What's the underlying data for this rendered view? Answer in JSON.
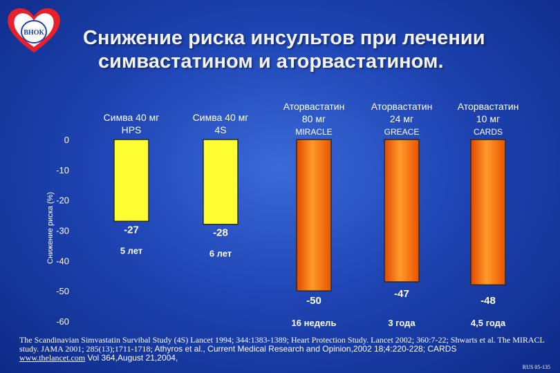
{
  "logo": {
    "text": "ВНОК",
    "name": "vnok-heart-logo"
  },
  "title": {
    "line1": "Снижение риска инсультов при лечении",
    "line2": "симвастатином и аторвастатином."
  },
  "chart_data": {
    "type": "bar",
    "ylabel": "Снижение риска (%)",
    "ylim": [
      -60,
      0
    ],
    "yticks": [
      0,
      -10,
      -20,
      -30,
      -40,
      -50,
      -60
    ],
    "grid": false,
    "categories": [
      {
        "line1": "Симва 40 мг",
        "line2": "HPS",
        "study": ""
      },
      {
        "line1": "Симва 40 мг",
        "line2": "4S",
        "study": ""
      },
      {
        "line1": "Аторвастатин",
        "line2": "80 мг",
        "study": "MIRACLE"
      },
      {
        "line1": "Аторвастатин",
        "line2": "24 мг",
        "study": "GREACE"
      },
      {
        "line1": "Аторвастатин",
        "line2": "10 мг",
        "study": "CARDS"
      }
    ],
    "values": [
      -27,
      -28,
      -50,
      -47,
      -48
    ],
    "value_labels": [
      "-27",
      "-28",
      "-50",
      "-47",
      "-48"
    ],
    "durations": [
      "5 лет",
      "6 лет",
      "16 недель",
      "3 года",
      "4,5 года"
    ],
    "bar_colors": [
      "#ffff33",
      "#ffff33",
      "orange-gradient",
      "orange-gradient",
      "orange-gradient"
    ]
  },
  "references": {
    "part1": "The Scandinavian Simvastatin Survibal Study (4S) Lancet 1994; 344:1383-1389; Heart Protection Study. Lancet 2002; 360:7-22; Shwarts et al. The MIRACL study. JAMA 2001; 285(13);1711-1718;",
    "part2": " Athyros et al., Current Medical Research and Opinion,2002 18;4:220-228; CARDS",
    "link": "www.thelancet.com",
    "part3": " Vol 364,August 21,2004,"
  },
  "slide_code": "RUS 05-135"
}
